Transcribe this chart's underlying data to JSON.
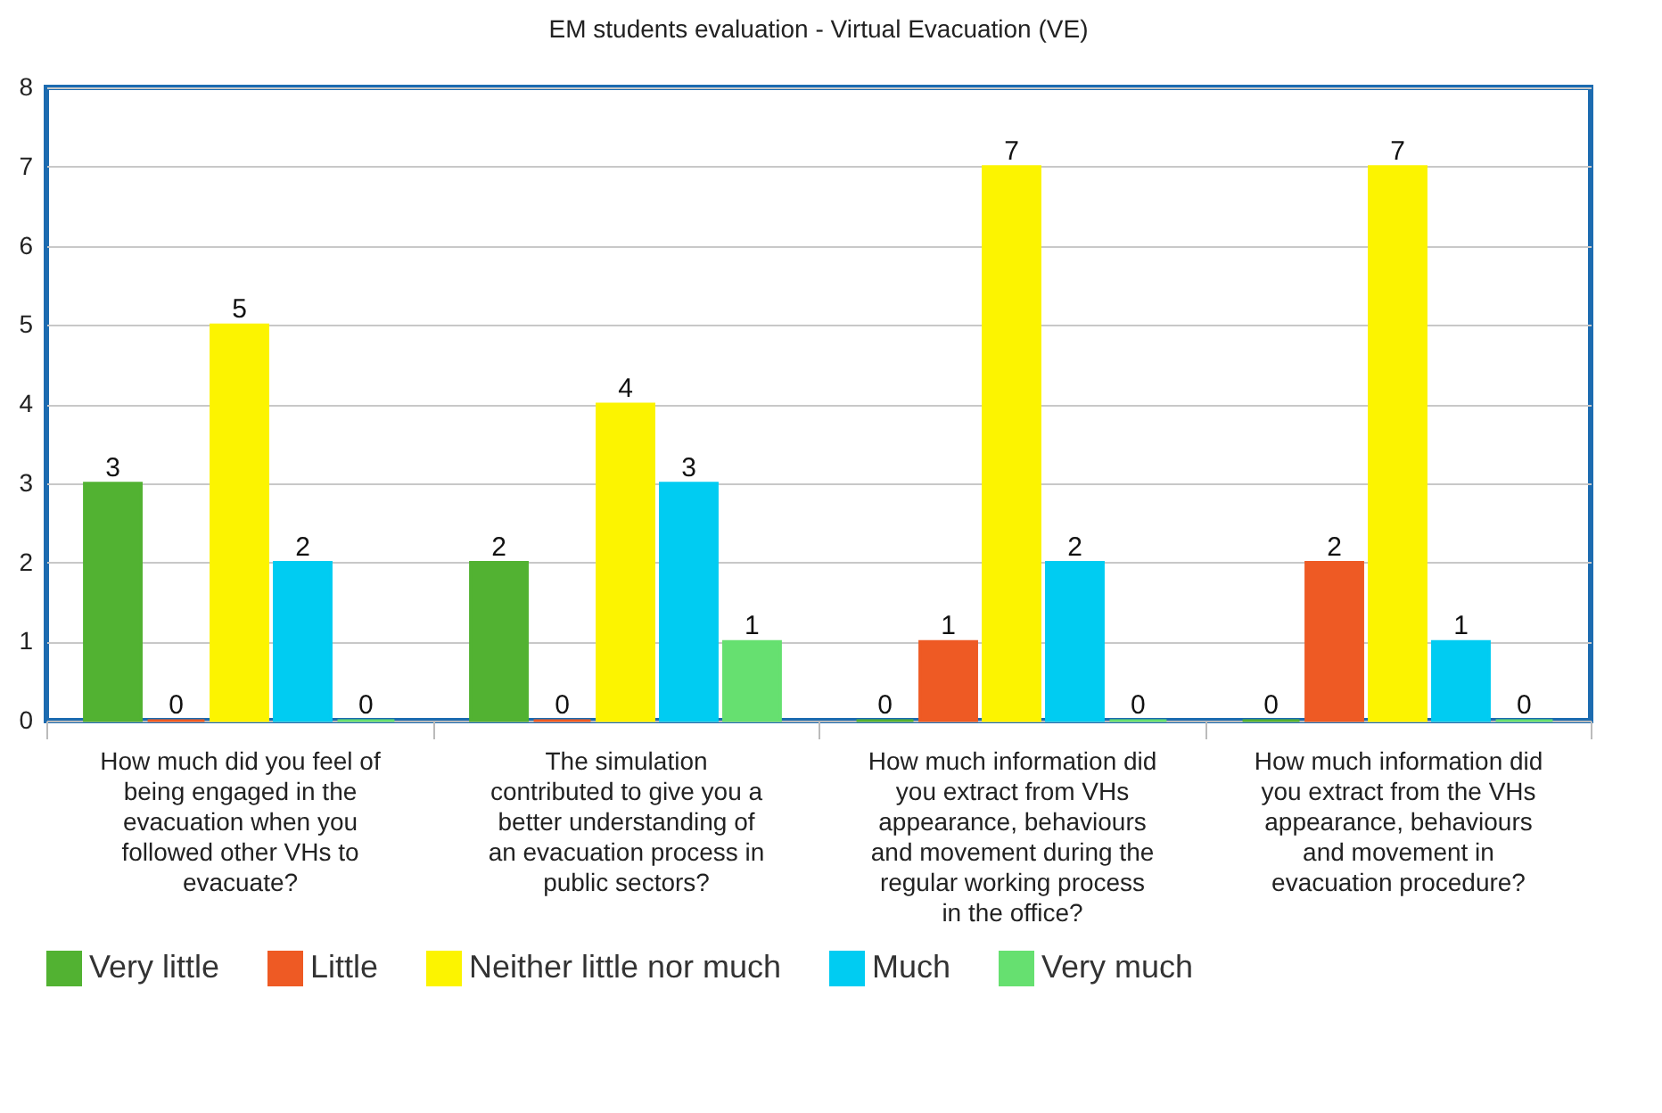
{
  "chart_data": {
    "type": "bar",
    "title": "EM students evaluation - Virtual Evacuation (VE)",
    "categories": [
      "How much did you feel of being engaged in the evacuation when you followed other VHs to evacuate?",
      "The simulation contributed to give you a better understanding of an evacuation process in public sectors?",
      "How much information did you extract from VHs appearance, behaviours and movement during the regular working process in the office?",
      "How much information did you extract from the VHs appearance, behaviours and movement in evacuation procedure?"
    ],
    "series": [
      {
        "name": "Very little",
        "color": "#52b232",
        "values": [
          3,
          2,
          0,
          0
        ]
      },
      {
        "name": "Little",
        "color": "#ee5a24",
        "values": [
          0,
          0,
          1,
          2
        ]
      },
      {
        "name": "Neither little nor much",
        "color": "#fcf400",
        "values": [
          5,
          4,
          7,
          7
        ]
      },
      {
        "name": "Much",
        "color": "#00ccf2",
        "values": [
          2,
          3,
          2,
          1
        ]
      },
      {
        "name": "Very much",
        "color": "#66e070",
        "values": [
          0,
          1,
          0,
          0
        ]
      }
    ],
    "ylim": [
      0,
      8
    ],
    "yticks": [
      0,
      1,
      2,
      3,
      4,
      5,
      6,
      7,
      8
    ],
    "grid": "y",
    "legend": "bottom",
    "data_labels": true
  }
}
